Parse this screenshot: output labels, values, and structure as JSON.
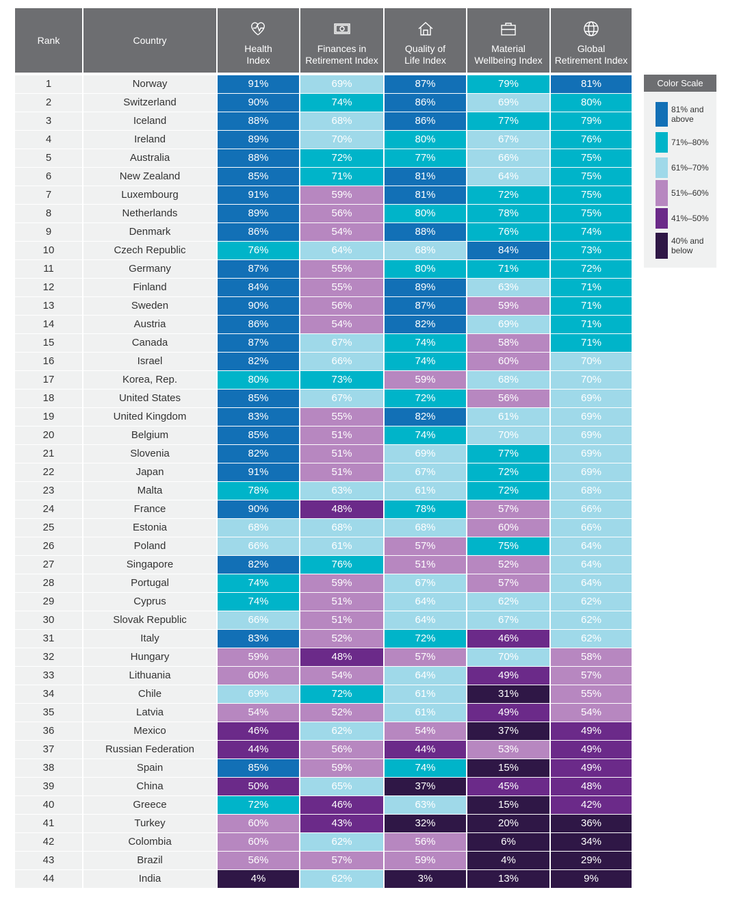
{
  "table": {
    "columns": [
      "Rank",
      "Country",
      "Health\nIndex",
      "Finances in\nRetirement Index",
      "Quality of\nLife Index",
      "Material\nWellbeing Index",
      "Global\nRetirement Index"
    ],
    "rows": [
      [
        "1",
        "Norway",
        "91%",
        "69%",
        "87%",
        "79%",
        "81%"
      ],
      [
        "2",
        "Switzerland",
        "90%",
        "74%",
        "86%",
        "69%",
        "80%"
      ],
      [
        "3",
        "Iceland",
        "88%",
        "68%",
        "86%",
        "77%",
        "79%"
      ],
      [
        "4",
        "Ireland",
        "89%",
        "70%",
        "80%",
        "67%",
        "76%"
      ],
      [
        "5",
        "Australia",
        "88%",
        "72%",
        "77%",
        "66%",
        "75%"
      ],
      [
        "6",
        "New Zealand",
        "85%",
        "71%",
        "81%",
        "64%",
        "75%"
      ],
      [
        "7",
        "Luxembourg",
        "91%",
        "59%",
        "81%",
        "72%",
        "75%"
      ],
      [
        "8",
        "Netherlands",
        "89%",
        "56%",
        "80%",
        "78%",
        "75%"
      ],
      [
        "9",
        "Denmark",
        "86%",
        "54%",
        "88%",
        "76%",
        "74%"
      ],
      [
        "10",
        "Czech Republic",
        "76%",
        "64%",
        "68%",
        "84%",
        "73%"
      ],
      [
        "11",
        "Germany",
        "87%",
        "55%",
        "80%",
        "71%",
        "72%"
      ],
      [
        "12",
        "Finland",
        "84%",
        "55%",
        "89%",
        "63%",
        "71%"
      ],
      [
        "13",
        "Sweden",
        "90%",
        "56%",
        "87%",
        "59%",
        "71%"
      ],
      [
        "14",
        "Austria",
        "86%",
        "54%",
        "82%",
        "69%",
        "71%"
      ],
      [
        "15",
        "Canada",
        "87%",
        "67%",
        "74%",
        "58%",
        "71%"
      ],
      [
        "16",
        "Israel",
        "82%",
        "66%",
        "74%",
        "60%",
        "70%"
      ],
      [
        "17",
        "Korea, Rep.",
        "80%",
        "73%",
        "59%",
        "68%",
        "70%"
      ],
      [
        "18",
        "United States",
        "85%",
        "67%",
        "72%",
        "56%",
        "69%"
      ],
      [
        "19",
        "United Kingdom",
        "83%",
        "55%",
        "82%",
        "61%",
        "69%"
      ],
      [
        "20",
        "Belgium",
        "85%",
        "51%",
        "74%",
        "70%",
        "69%"
      ],
      [
        "21",
        "Slovenia",
        "82%",
        "51%",
        "69%",
        "77%",
        "69%"
      ],
      [
        "22",
        "Japan",
        "91%",
        "51%",
        "67%",
        "72%",
        "69%"
      ],
      [
        "23",
        "Malta",
        "78%",
        "63%",
        "61%",
        "72%",
        "68%"
      ],
      [
        "24",
        "France",
        "90%",
        "48%",
        "78%",
        "57%",
        "66%"
      ],
      [
        "25",
        "Estonia",
        "68%",
        "68%",
        "68%",
        "60%",
        "66%"
      ],
      [
        "26",
        "Poland",
        "66%",
        "61%",
        "57%",
        "75%",
        "64%"
      ],
      [
        "27",
        "Singapore",
        "82%",
        "76%",
        "51%",
        "52%",
        "64%"
      ],
      [
        "28",
        "Portugal",
        "74%",
        "59%",
        "67%",
        "57%",
        "64%"
      ],
      [
        "29",
        "Cyprus",
        "74%",
        "51%",
        "64%",
        "62%",
        "62%"
      ],
      [
        "30",
        "Slovak Republic",
        "66%",
        "51%",
        "64%",
        "67%",
        "62%"
      ],
      [
        "31",
        "Italy",
        "83%",
        "52%",
        "72%",
        "46%",
        "62%"
      ],
      [
        "32",
        "Hungary",
        "59%",
        "48%",
        "57%",
        "70%",
        "58%"
      ],
      [
        "33",
        "Lithuania",
        "60%",
        "54%",
        "64%",
        "49%",
        "57%"
      ],
      [
        "34",
        "Chile",
        "69%",
        "72%",
        "61%",
        "31%",
        "55%"
      ],
      [
        "35",
        "Latvia",
        "54%",
        "52%",
        "61%",
        "49%",
        "54%"
      ],
      [
        "36",
        "Mexico",
        "46%",
        "62%",
        "54%",
        "37%",
        "49%"
      ],
      [
        "37",
        "Russian Federation",
        "44%",
        "56%",
        "44%",
        "53%",
        "49%"
      ],
      [
        "38",
        "Spain",
        "85%",
        "59%",
        "74%",
        "15%",
        "49%"
      ],
      [
        "39",
        "China",
        "50%",
        "65%",
        "37%",
        "45%",
        "48%"
      ],
      [
        "40",
        "Greece",
        "72%",
        "46%",
        "63%",
        "15%",
        "42%"
      ],
      [
        "41",
        "Turkey",
        "60%",
        "43%",
        "32%",
        "20%",
        "36%"
      ],
      [
        "42",
        "Colombia",
        "60%",
        "62%",
        "56%",
        "6%",
        "34%"
      ],
      [
        "43",
        "Brazil",
        "56%",
        "57%",
        "59%",
        "4%",
        "29%"
      ],
      [
        "44",
        "India",
        "4%",
        "62%",
        "3%",
        "13%",
        "9%"
      ]
    ]
  },
  "legend": {
    "title": "Color Scale",
    "items": [
      {
        "label": "81% and\nabove",
        "color": "#1270b6",
        "min": 81
      },
      {
        "label": "71%–80%",
        "color": "#00b4c9",
        "min": 71
      },
      {
        "label": "61%–70%",
        "color": "#9fd9e9",
        "min": 61
      },
      {
        "label": "51%–60%",
        "color": "#b787c0",
        "min": 51
      },
      {
        "label": "41%–50%",
        "color": "#6b2a89",
        "min": 41
      },
      {
        "label": "40% and\nbelow",
        "color": "#2f1746",
        "min": 0
      }
    ]
  }
}
